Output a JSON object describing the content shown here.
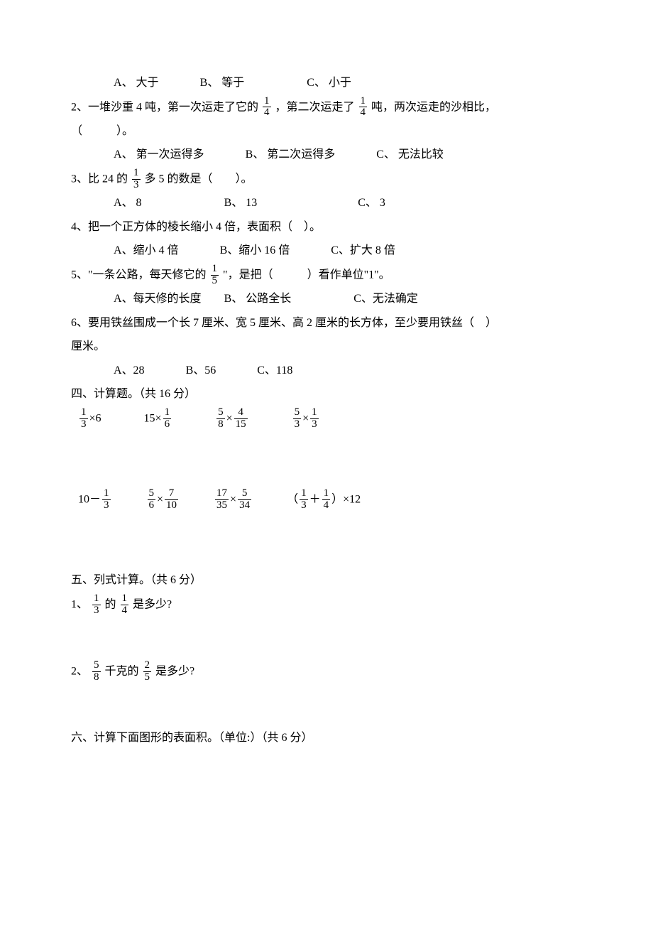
{
  "q1_options": {
    "a": "A、 大于",
    "b": "B、 等于",
    "c": "C、 小于"
  },
  "q2": {
    "pre": "2、一堆沙重 4 吨，第一次运走了它的",
    "f1_num": "1",
    "f1_den": "4",
    "mid": " ，第二次运走了",
    "f2_num": "1",
    "f2_den": "4",
    "post": "吨，两次运走的沙相比，",
    "paren": "（　　　）。",
    "opts": {
      "a": "A、 第一次运得多",
      "b": "B、 第二次运得多",
      "c": "C、 无法比较"
    }
  },
  "q3": {
    "pre": "3、比 24 的",
    "f_num": "1",
    "f_den": "3",
    "post": "多 5 的数是（　　）。",
    "opts": {
      "a": "A、 8",
      "b": "B、 13",
      "c": "C、 3"
    }
  },
  "q4": {
    "stem": "4、把一个正方体的棱长缩小 4 倍，表面积（　）。",
    "opts": {
      "a": "A、缩小 4 倍",
      "b": "B、缩小 16 倍",
      "c": "C、扩大 8 倍"
    }
  },
  "q5": {
    "pre": "5、\"一条公路，每天修它的",
    "f_num": "1",
    "f_den": "5",
    "post": "\"，是把（　　　）看作单位\"1\"。",
    "opts": {
      "a": "A、每天修的长度",
      "b": "B、 公路全长",
      "c": "C、无法确定"
    }
  },
  "q6": {
    "line1": "6、要用铁丝围成一个长 7 厘米、宽 5 厘米、高 2 厘米的长方体，至少要用铁丝（　）",
    "line2": "厘米。",
    "opts": {
      "a": "A、28",
      "b": "B、56",
      "c": "C、118"
    }
  },
  "sec4_title": "四、计算题。（共 16 分）",
  "calc": {
    "r1c1": {
      "f_num": "1",
      "f_den": "3",
      "op": "×6"
    },
    "r1c2": {
      "pre": "15×",
      "f_num": "1",
      "f_den": "6"
    },
    "r1c3": {
      "f1_num": "5",
      "f1_den": "8",
      "op": "×",
      "f2_num": "4",
      "f2_den": "15"
    },
    "r1c4": {
      "f1_num": "5",
      "f1_den": "3",
      "op": "×",
      "f2_num": "1",
      "f2_den": "3"
    },
    "r2c1": {
      "pre": "10－",
      "f_num": "1",
      "f_den": "3"
    },
    "r2c2": {
      "f1_num": "5",
      "f1_den": "6",
      "op": "×",
      "f2_num": "7",
      "f2_den": "10"
    },
    "r2c3": {
      "f1_num": "17",
      "f1_den": "35",
      "op": "×",
      "f2_num": "5",
      "f2_den": "34"
    },
    "r2c4": {
      "lparen": "（",
      "f1_num": "1",
      "f1_den": "3",
      "op": "＋",
      "f2_num": "1",
      "f2_den": "4",
      "rparen": "）",
      "post": "×12"
    }
  },
  "sec5_title": "五、列式计算。（共 6 分）",
  "sec5_q1": {
    "pre": "1、",
    "f1_num": "1",
    "f1_den": "3",
    "mid": "的",
    "f2_num": "1",
    "f2_den": "4",
    "post": "是多少?"
  },
  "sec5_q2": {
    "pre": "2、",
    "f1_num": "5",
    "f1_den": "8",
    "mid": "千克的",
    "f2_num": "2",
    "f2_den": "5",
    "post": "是多少?"
  },
  "sec6_title": "六、计算下面图形的表面积。（单位:）（共 6 分）"
}
